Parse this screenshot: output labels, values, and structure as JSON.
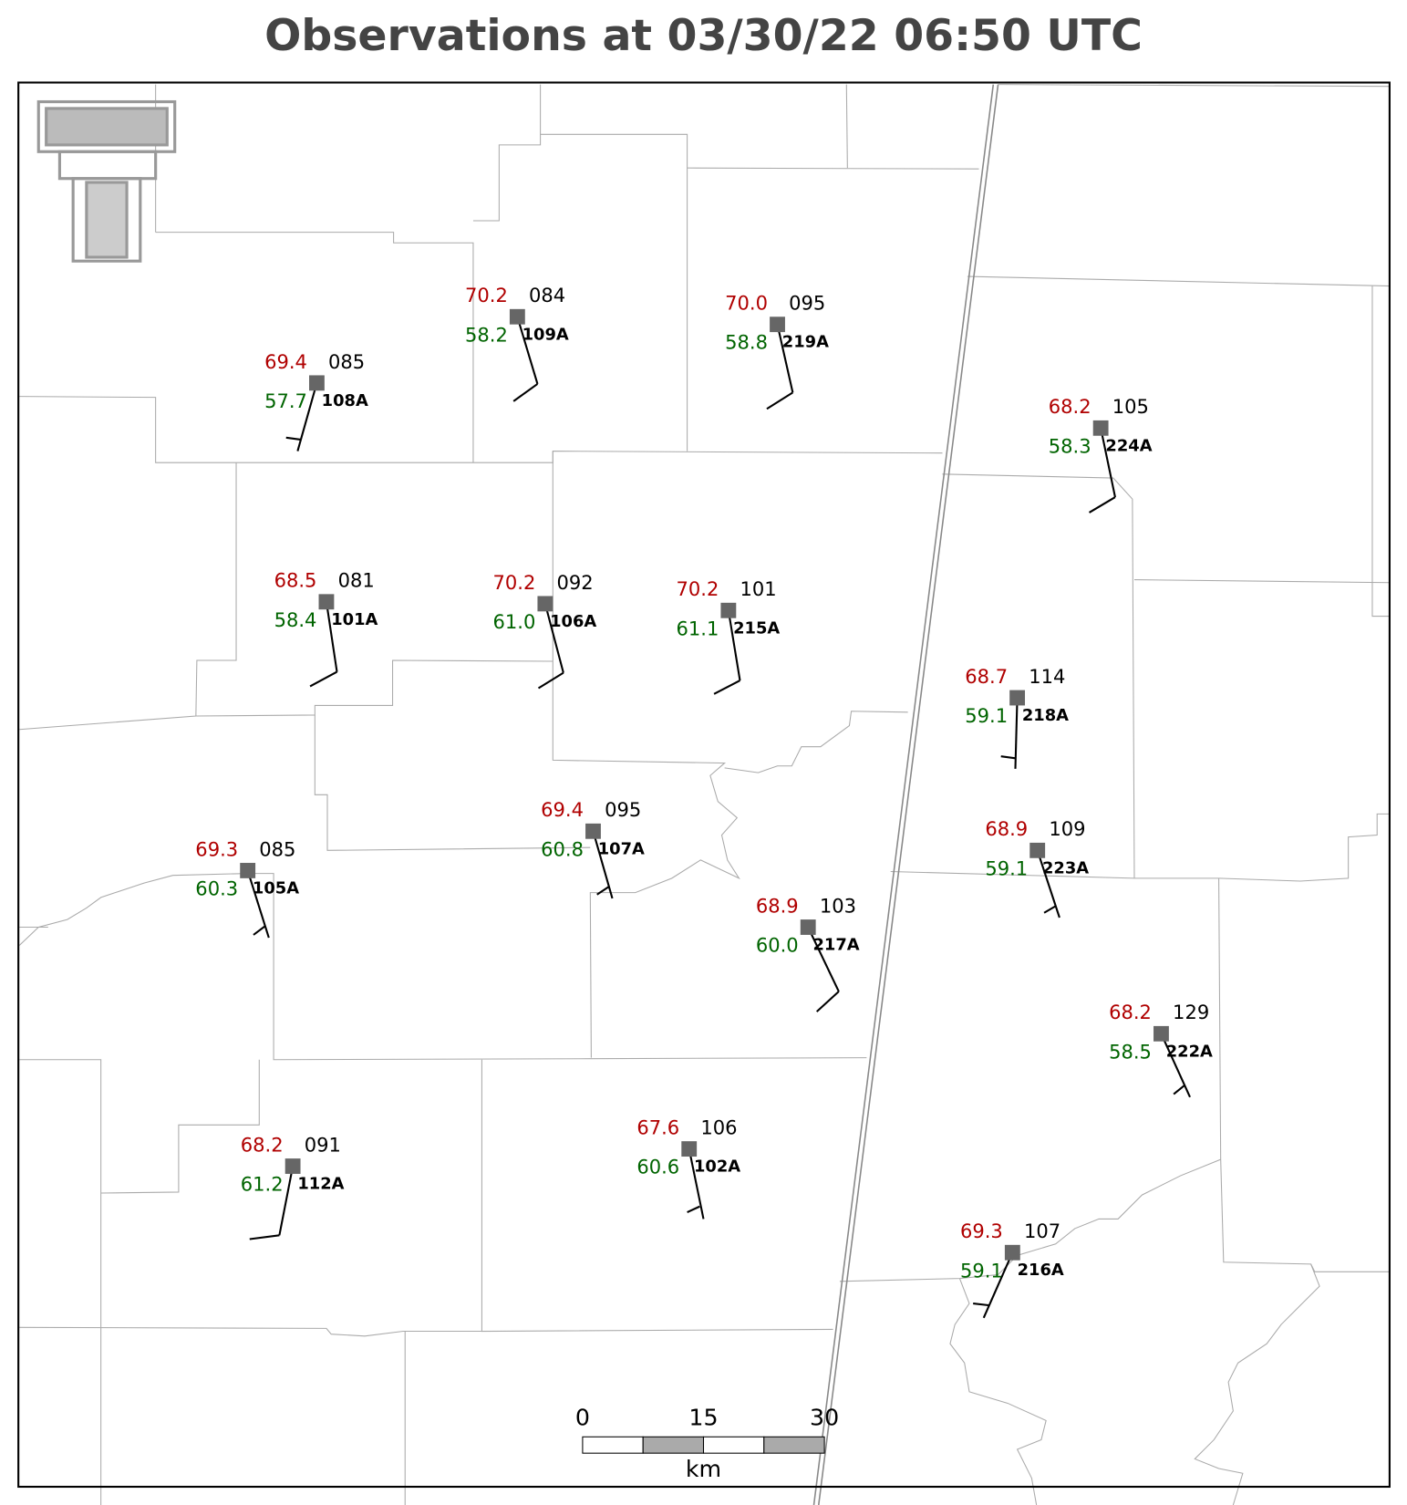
{
  "title": "Observations at 03/30/22 06:50 UTC",
  "stations": [
    {
      "id": "108A",
      "temperature": "69.4",
      "dewpoint": "57.7",
      "pressure": "085"
    },
    {
      "id": "109A",
      "temperature": "70.2",
      "dewpoint": "58.2",
      "pressure": "084"
    },
    {
      "id": "219A",
      "temperature": "70.0",
      "dewpoint": "58.8",
      "pressure": "095"
    },
    {
      "id": "224A",
      "temperature": "68.2",
      "dewpoint": "58.3",
      "pressure": "105"
    },
    {
      "id": "101A",
      "temperature": "68.5",
      "dewpoint": "58.4",
      "pressure": "081"
    },
    {
      "id": "106A",
      "temperature": "70.2",
      "dewpoint": "61.0",
      "pressure": "092"
    },
    {
      "id": "215A",
      "temperature": "70.2",
      "dewpoint": "61.1",
      "pressure": "101"
    },
    {
      "id": "218A",
      "temperature": "68.7",
      "dewpoint": "59.1",
      "pressure": "114"
    },
    {
      "id": "107A",
      "temperature": "69.4",
      "dewpoint": "60.8",
      "pressure": "095"
    },
    {
      "id": "105A",
      "temperature": "69.3",
      "dewpoint": "60.3",
      "pressure": "085"
    },
    {
      "id": "223A",
      "temperature": "68.9",
      "dewpoint": "59.1",
      "pressure": "109"
    },
    {
      "id": "217A",
      "temperature": "68.9",
      "dewpoint": "60.0",
      "pressure": "103"
    },
    {
      "id": "222A",
      "temperature": "68.2",
      "dewpoint": "58.5",
      "pressure": "129"
    },
    {
      "id": "112A",
      "temperature": "68.2",
      "dewpoint": "61.2",
      "pressure": "091"
    },
    {
      "id": "102A",
      "temperature": "67.6",
      "dewpoint": "60.6",
      "pressure": "106"
    },
    {
      "id": "216A",
      "temperature": "69.3",
      "dewpoint": "59.1",
      "pressure": "107"
    }
  ],
  "scale_bar": {
    "ticks": [
      "0",
      "15",
      "30"
    ],
    "unit": "km"
  }
}
